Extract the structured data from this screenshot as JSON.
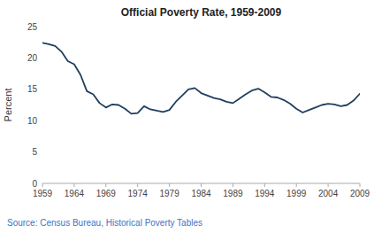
{
  "chart_data": {
    "type": "line",
    "title": "Official Poverty Rate, 1959-2009",
    "ylabel": "Percent",
    "source": "Source: Census Bureau, Historical Poverty Tables",
    "color": "#1F3F5F",
    "grid": false,
    "xlim": [
      1959,
      2009
    ],
    "xticks": [
      1959,
      1964,
      1969,
      1974,
      1979,
      1984,
      1989,
      1994,
      1999,
      2004,
      2009
    ],
    "ylim": [
      0,
      25
    ],
    "yticks": [
      0,
      5,
      10,
      15,
      20,
      25
    ],
    "x": [
      1959,
      1960,
      1961,
      1962,
      1963,
      1964,
      1965,
      1966,
      1967,
      1968,
      1969,
      1970,
      1971,
      1972,
      1973,
      1974,
      1975,
      1976,
      1977,
      1978,
      1979,
      1980,
      1981,
      1982,
      1983,
      1984,
      1985,
      1986,
      1987,
      1988,
      1989,
      1990,
      1991,
      1992,
      1993,
      1994,
      1995,
      1996,
      1997,
      1998,
      1999,
      2000,
      2001,
      2002,
      2003,
      2004,
      2005,
      2006,
      2007,
      2008,
      2009
    ],
    "values": [
      22.4,
      22.2,
      21.9,
      21.0,
      19.5,
      19.0,
      17.3,
      14.7,
      14.2,
      12.8,
      12.1,
      12.6,
      12.5,
      11.9,
      11.1,
      11.2,
      12.3,
      11.8,
      11.6,
      11.4,
      11.7,
      13.0,
      14.0,
      15.0,
      15.2,
      14.4,
      14.0,
      13.6,
      13.4,
      13.0,
      12.8,
      13.5,
      14.2,
      14.8,
      15.1,
      14.5,
      13.8,
      13.7,
      13.3,
      12.7,
      11.9,
      11.3,
      11.7,
      12.1,
      12.5,
      12.7,
      12.6,
      12.3,
      12.5,
      13.2,
      14.3
    ]
  }
}
